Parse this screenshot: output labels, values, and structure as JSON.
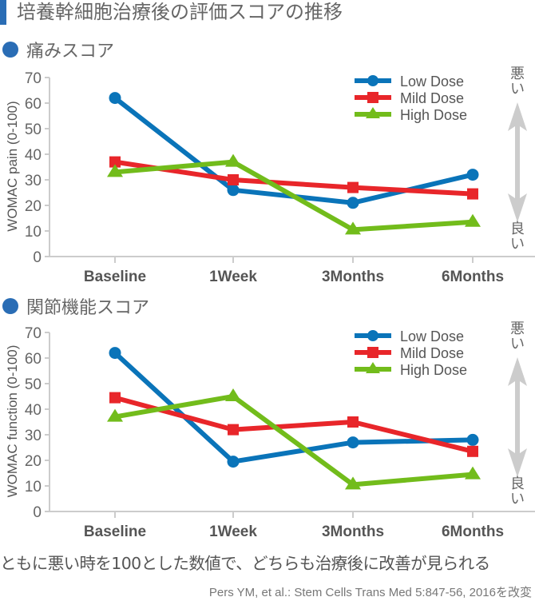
{
  "page": {
    "title": "培養幹細胞治療後の評価スコアの推移",
    "summary": "ともに悪い時を100とした数値で、どちらも治療後に改善が見られる",
    "citation": "Pers YM, et al.: Stem Cells Trans Med 5:847-56, 2016を改変"
  },
  "colors": {
    "accent": "#2a6db5",
    "low_dose": "#0a74b9",
    "mild_dose": "#e8262a",
    "high_dose": "#72bc1b",
    "axis": "#cccccc",
    "arrow": "#cccccc"
  },
  "sections": [
    {
      "title": "痛みスコア"
    },
    {
      "title": "関節機能スコア"
    }
  ],
  "chart_data": [
    {
      "type": "line",
      "title": "痛みスコア",
      "xlabel": "",
      "ylabel": "WOMAC pain (0-100)",
      "ylim": [
        0,
        70
      ],
      "yticks": [
        "0",
        "10",
        "20",
        "30",
        "40",
        "50",
        "60",
        "70"
      ],
      "categories": [
        "Baseline",
        "1Week",
        "3Months",
        "6Months"
      ],
      "series": [
        {
          "name": "Low Dose",
          "marker": "circle",
          "values": [
            62,
            26,
            21,
            32
          ]
        },
        {
          "name": "Mild Dose",
          "marker": "square",
          "values": [
            37,
            30,
            27,
            24.5
          ]
        },
        {
          "name": "High Dose",
          "marker": "triangle",
          "values": [
            33,
            37,
            10.5,
            13.5
          ]
        }
      ],
      "legend": "top-right",
      "grid": false,
      "annotation": {
        "top": "悪い",
        "bottom": "良い"
      }
    },
    {
      "type": "line",
      "title": "関節機能スコア",
      "xlabel": "",
      "ylabel": "WOMAC function (0-100)",
      "ylim": [
        0,
        70
      ],
      "yticks": [
        "0",
        "10",
        "20",
        "30",
        "40",
        "50",
        "60",
        "70"
      ],
      "categories": [
        "Baseline",
        "1Week",
        "3Months",
        "6Months"
      ],
      "series": [
        {
          "name": "Low Dose",
          "marker": "circle",
          "values": [
            62,
            19.5,
            27,
            28
          ]
        },
        {
          "name": "Mild Dose",
          "marker": "square",
          "values": [
            44.5,
            32,
            35,
            23.5
          ]
        },
        {
          "name": "High Dose",
          "marker": "triangle",
          "values": [
            37,
            45,
            10.5,
            14.5
          ]
        }
      ],
      "legend": "top-right",
      "grid": false,
      "annotation": {
        "top": "悪い",
        "bottom": "良い"
      }
    }
  ]
}
